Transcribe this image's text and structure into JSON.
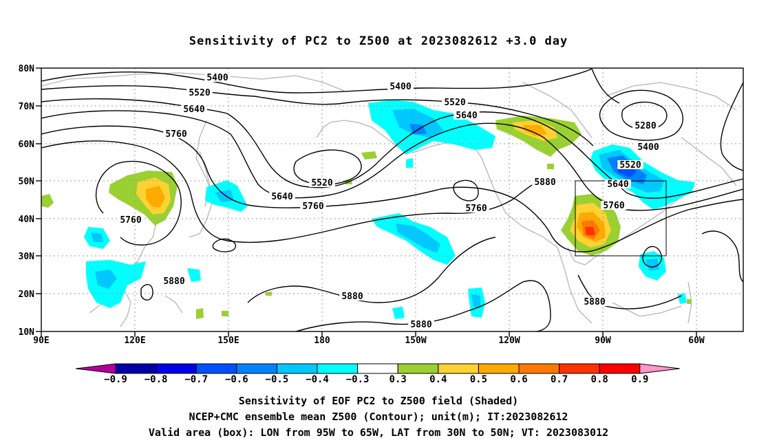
{
  "title": "Sensitivity of PC2 to Z500 at 2023082612 +3.0 day",
  "lat_labels": [
    "80N",
    "70N",
    "60N",
    "50N",
    "40N",
    "30N",
    "20N",
    "10N"
  ],
  "lon_labels": [
    "90E",
    "120E",
    "150E",
    "180",
    "150W",
    "120W",
    "90W",
    "60W"
  ],
  "contour_labels": [
    "5400",
    "5520",
    "5640",
    "5760",
    "5400",
    "5520",
    "5640",
    "5280",
    "5400",
    "5520",
    "5640",
    "5760",
    "5760",
    "5520",
    "5640",
    "5760",
    "5760",
    "5880",
    "5880",
    "5880",
    "5880",
    "5880"
  ],
  "colorbar": {
    "colors": [
      "#b4009b",
      "#0000a8",
      "#0000e6",
      "#0050ff",
      "#0082ff",
      "#00c8ff",
      "#00ffff",
      "#ffffff",
      "#9ad031",
      "#ffd233",
      "#ffaa00",
      "#ff7800",
      "#ff3200",
      "#ff0000",
      "#ff96c8"
    ],
    "labels": [
      "−0.9",
      "−0.8",
      "−0.7",
      "−0.6",
      "−0.5",
      "−0.4",
      "−0.3",
      "0.3",
      "0.4",
      "0.5",
      "0.6",
      "0.7",
      "0.8",
      "0.9"
    ]
  },
  "captions": {
    "line1": "Sensitivity of EOF PC2 to Z500 field (Shaded)",
    "line2": "NCEP+CMC ensemble mean Z500 (Contour); unit(m); IT:2023082612",
    "line3": "Valid area (box): LON from 95W to 65W, LAT from 30N to 50N; VT: 2023083012"
  }
}
